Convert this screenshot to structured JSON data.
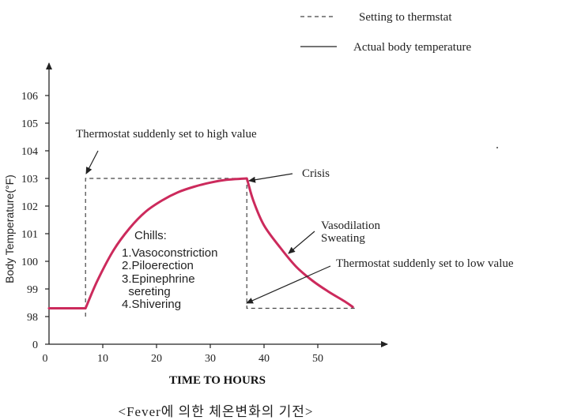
{
  "chart_data": {
    "type": "line",
    "xlabel": "TIME TO HOURS",
    "ylabel": "Body Temperature(°F)",
    "caption": "<Fever에 의한 체온변화의 기전>",
    "x_ticks": [
      0,
      10,
      20,
      30,
      40,
      50
    ],
    "y_ticks": [
      {
        "value": 0,
        "label": "0"
      },
      {
        "value": 98,
        "label": "98"
      },
      {
        "value": 99,
        "label": "99"
      },
      {
        "value": 100,
        "label": "100"
      },
      {
        "value": 101,
        "label": "101"
      },
      {
        "value": 102,
        "label": "102"
      },
      {
        "value": 103,
        "label": "103"
      },
      {
        "value": 104,
        "label": "104"
      },
      {
        "value": 105,
        "label": "105"
      },
      {
        "value": 106,
        "label": "106"
      }
    ],
    "y_axis_break": "0 to 98",
    "series": [
      {
        "name": "Setting to thermstat",
        "style": "dashed",
        "color": "#444444",
        "points": [
          [
            6.8,
            98.0
          ],
          [
            6.8,
            103.0
          ],
          [
            36.8,
            103.0
          ],
          [
            36.8,
            98.3
          ],
          [
            57,
            98.3
          ]
        ]
      },
      {
        "name": "Actual body temperature",
        "style": "solid",
        "color": "#cc2a5c",
        "points": [
          [
            0,
            98.3
          ],
          [
            6.8,
            98.3
          ],
          [
            9,
            99.3
          ],
          [
            12,
            100.4
          ],
          [
            15,
            101.2
          ],
          [
            18,
            101.8
          ],
          [
            21,
            102.2
          ],
          [
            24,
            102.5
          ],
          [
            27,
            102.7
          ],
          [
            30,
            102.85
          ],
          [
            33,
            102.95
          ],
          [
            36.8,
            103.0
          ],
          [
            38,
            102.2
          ],
          [
            40,
            101.3
          ],
          [
            43,
            100.5
          ],
          [
            46,
            99.8
          ],
          [
            49,
            99.3
          ],
          [
            52,
            98.9
          ],
          [
            55,
            98.55
          ],
          [
            56.5,
            98.35
          ]
        ]
      }
    ],
    "annotations": {
      "high": "Thermostat suddenly set to high value",
      "crisis": "Crisis",
      "chills_title": "Chills:",
      "chills_items": [
        "1.Vasoconstriction",
        "2.Piloerection",
        "3.Epinephrine",
        "  sereting",
        "4.Shivering"
      ],
      "vasodilation": "Vasodilation",
      "sweating": "Sweating",
      "low": "Thermostat suddenly set to low value"
    },
    "legend": {
      "placement": "top-right",
      "entries": [
        {
          "label": "Setting to thermstat",
          "style": "dashed"
        },
        {
          "label": "Actual body temperature",
          "style": "solid"
        }
      ]
    },
    "grid": false
  }
}
